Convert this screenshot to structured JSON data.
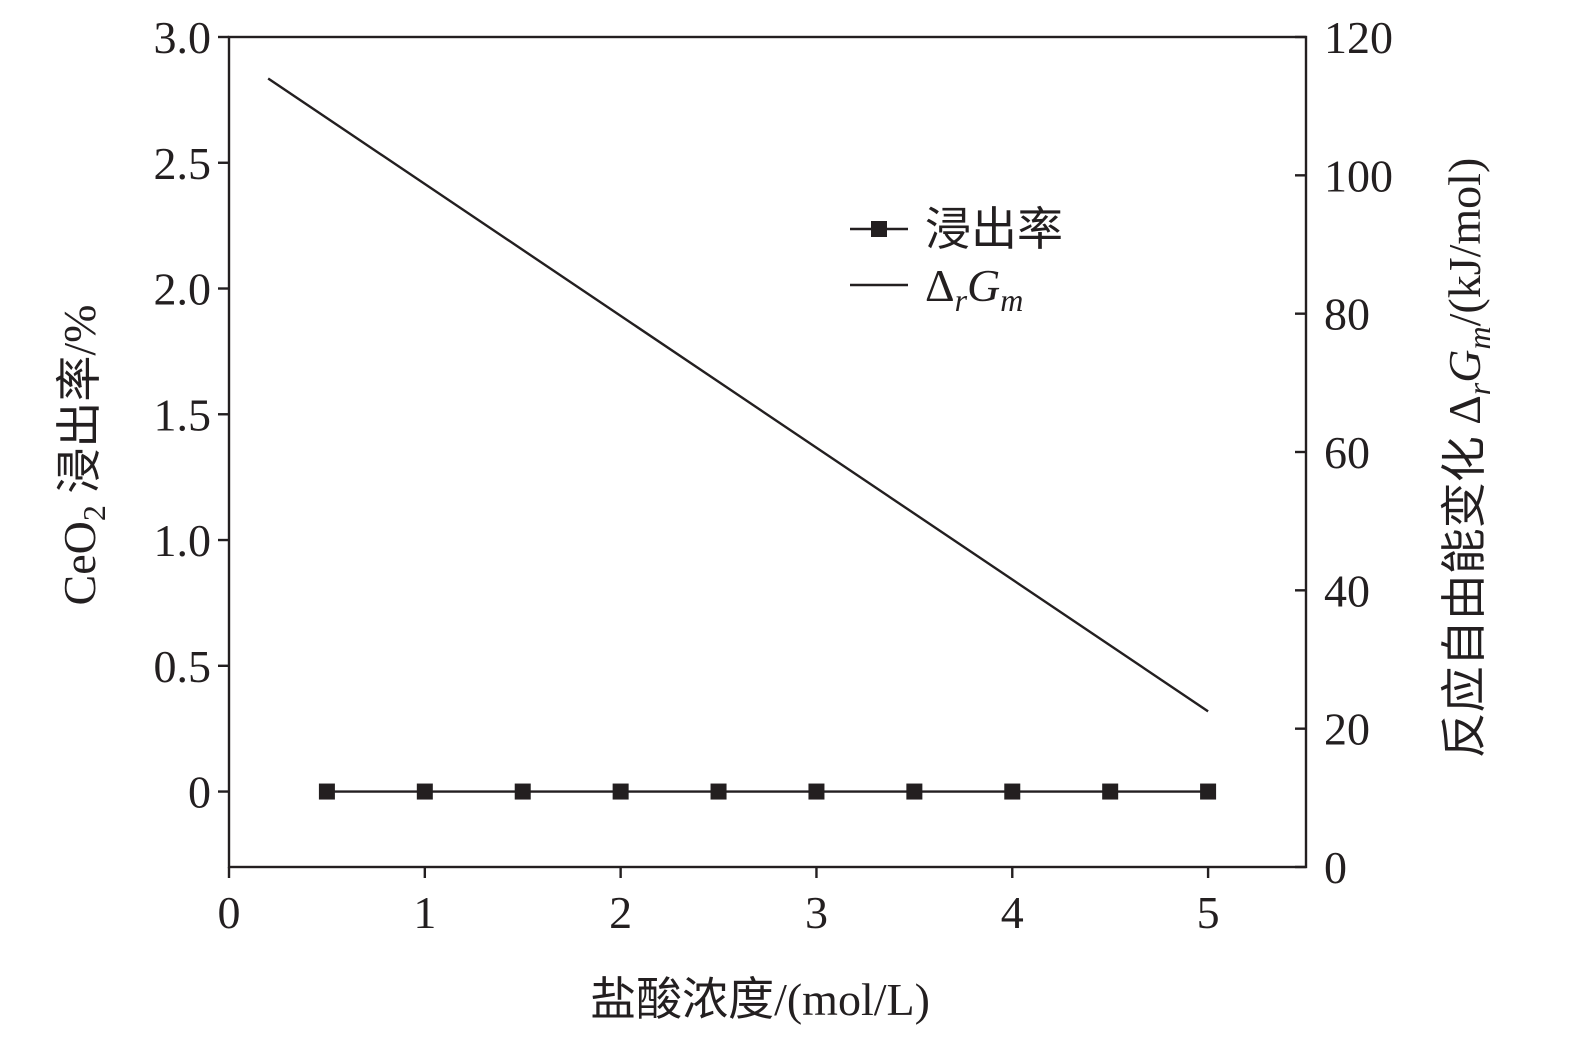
{
  "chart_data": {
    "type": "line",
    "dual_axis": true,
    "xlabel": "盐酸浓度/(mol/L)",
    "xlim": [
      0,
      5.5
    ],
    "xticks": [
      0,
      1,
      2,
      3,
      4,
      5
    ],
    "y_left": {
      "label_prefix": "CeO",
      "label_sub": "2",
      "label_suffix": " 浸出率/%",
      "lim": [
        -0.3,
        3.0
      ],
      "ticks": [
        "3.0",
        "2.5",
        "2.0",
        "1.5",
        "1.0",
        "0.5",
        "0"
      ]
    },
    "y_right": {
      "label_prefix": "反应自由能变化 Δ",
      "label_sub1": "r",
      "label_mid": "G",
      "label_sub2": "m",
      "label_suffix": "/(kJ/mol)",
      "lim": [
        0,
        120
      ],
      "ticks": [
        "120",
        "100",
        "80",
        "60",
        "40",
        "20",
        "0"
      ]
    },
    "series": [
      {
        "name": "浸出率",
        "axis": "left",
        "marker": "square",
        "x": [
          0.5,
          1.0,
          1.5,
          2.0,
          2.5,
          3.0,
          3.5,
          4.0,
          4.5,
          5.0
        ],
        "y": [
          0,
          0,
          0,
          0,
          0,
          0,
          0,
          0,
          0,
          0
        ]
      },
      {
        "name_main": "Δ",
        "name_sub1": "r",
        "name_mid": "G",
        "name_sub2": "m",
        "axis": "right",
        "marker": "none",
        "x": [
          0.2,
          5.0
        ],
        "y": [
          114,
          22.5
        ]
      }
    ],
    "legend_position": "upper-right",
    "grid": false,
    "color": "#231f20"
  }
}
